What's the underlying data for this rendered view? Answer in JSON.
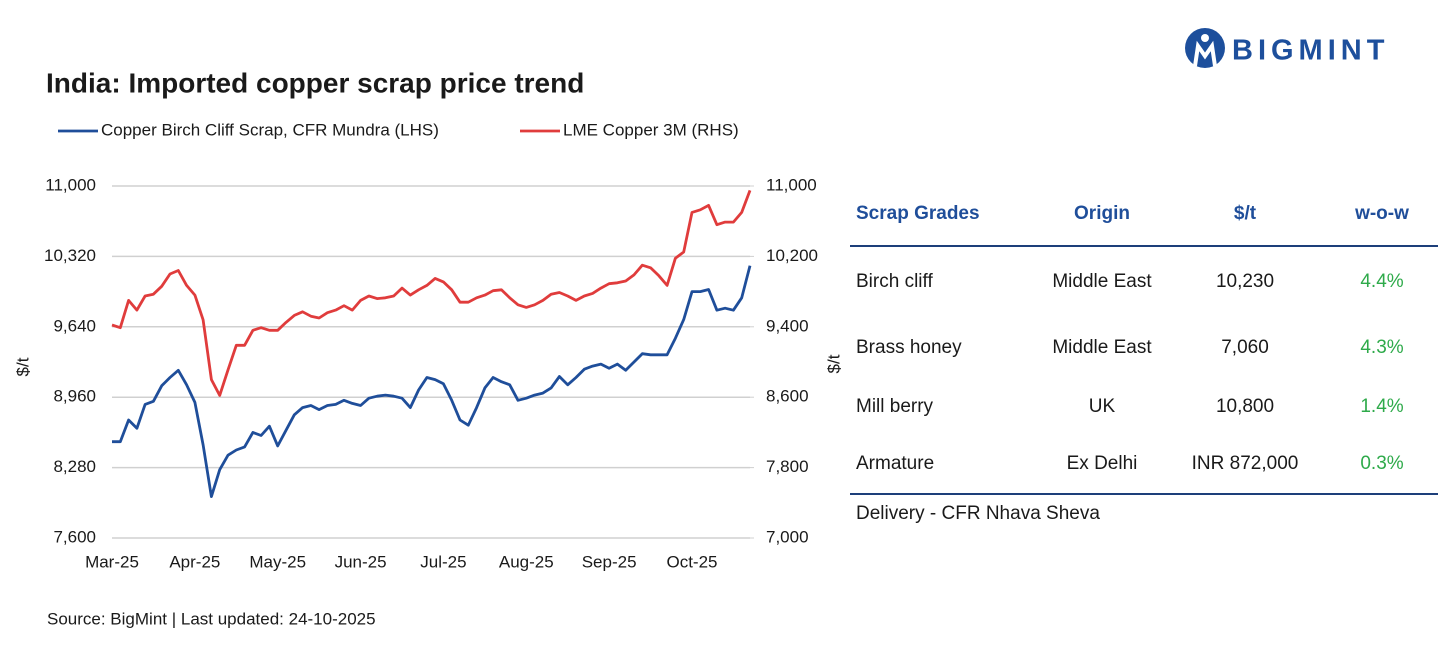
{
  "logo": "BIGMINT",
  "chart_data": {
    "type": "line",
    "title": "India: Imported copper scrap price trend",
    "categories": [
      "Mar-25",
      null,
      null,
      null,
      null,
      null,
      null,
      null,
      null,
      null,
      "Apr-25",
      null,
      null,
      null,
      null,
      null,
      null,
      null,
      null,
      null,
      "May-25",
      null,
      null,
      null,
      null,
      null,
      null,
      null,
      null,
      null,
      "Jun-25",
      null,
      null,
      null,
      null,
      null,
      null,
      null,
      null,
      null,
      "Jul-25",
      null,
      null,
      null,
      null,
      null,
      null,
      null,
      null,
      null,
      "Aug-25",
      null,
      null,
      null,
      null,
      null,
      null,
      null,
      null,
      null,
      "Sep-25",
      null,
      null,
      null,
      null,
      null,
      null,
      null,
      null,
      null,
      "Oct-25",
      null,
      null,
      null,
      null,
      null,
      null,
      null
    ],
    "series": [
      {
        "name": "Copper Birch Cliff Scrap, CFR Mundra (LHS)",
        "color": "#1f4e9a",
        "axis": "y",
        "values": [
          8530,
          8530,
          8740,
          8660,
          8890,
          8920,
          9070,
          9150,
          9220,
          9080,
          8910,
          8500,
          8000,
          8260,
          8400,
          8450,
          8480,
          8620,
          8590,
          8680,
          8490,
          8640,
          8790,
          8860,
          8880,
          8840,
          8880,
          8890,
          8930,
          8900,
          8880,
          8950,
          8970,
          8980,
          8970,
          8950,
          8860,
          9030,
          9150,
          9130,
          9090,
          8930,
          8740,
          8690,
          8860,
          9050,
          9150,
          9110,
          9080,
          8930,
          8950,
          8980,
          9000,
          9050,
          9160,
          9080,
          9150,
          9230,
          9260,
          9280,
          9240,
          9280,
          9220,
          9300,
          9380,
          9370,
          9370,
          9370,
          9530,
          9710,
          9980,
          9980,
          10000,
          9800,
          9820,
          9800,
          9920,
          10230
        ]
      },
      {
        "name": "LME Copper 3M (RHS)",
        "color": "#e03c3c",
        "axis": "y2",
        "values": [
          9420,
          9390,
          9700,
          9590,
          9750,
          9770,
          9860,
          10000,
          10040,
          9870,
          9760,
          9480,
          8800,
          8620,
          8910,
          9190,
          9190,
          9360,
          9390,
          9360,
          9360,
          9450,
          9530,
          9570,
          9520,
          9500,
          9560,
          9590,
          9640,
          9590,
          9700,
          9750,
          9720,
          9730,
          9750,
          9840,
          9760,
          9820,
          9870,
          9950,
          9910,
          9820,
          9680,
          9680,
          9730,
          9760,
          9810,
          9820,
          9730,
          9650,
          9620,
          9650,
          9700,
          9770,
          9790,
          9750,
          9700,
          9750,
          9780,
          9840,
          9890,
          9900,
          9920,
          9990,
          10100,
          10070,
          9980,
          9870,
          10180,
          10250,
          10700,
          10730,
          10780,
          10560,
          10590,
          10590,
          10700,
          10950
        ]
      }
    ],
    "ylabel": "$/t",
    "y2label": "$/t",
    "ylim": [
      7600,
      11000
    ],
    "yticks": [
      {
        "value": 7600,
        "label": "7,600"
      },
      {
        "value": 8280,
        "label": "8,280"
      },
      {
        "value": 8960,
        "label": "8,960"
      },
      {
        "value": 9640,
        "label": "9,640"
      },
      {
        "value": 10320,
        "label": "10,320"
      },
      {
        "value": 11000,
        "label": "11,000"
      }
    ],
    "y2lim": [
      7000,
      11000
    ],
    "y2ticks": [
      {
        "value": 7000,
        "label": "7,000"
      },
      {
        "value": 7800,
        "label": "7,800"
      },
      {
        "value": 8600,
        "label": "8,600"
      },
      {
        "value": 9400,
        "label": "9,400"
      },
      {
        "value": 10200,
        "label": "10,200"
      },
      {
        "value": 11000,
        "label": "11,000"
      }
    ],
    "grid": true,
    "legend": "top-left"
  },
  "table": {
    "headers": [
      "Scrap Grades",
      "Origin",
      "$/t",
      "w-o-w"
    ],
    "rows": [
      [
        "Birch cliff",
        "Middle East",
        "10,230",
        "4.4%"
      ],
      [
        "Brass honey",
        "Middle East",
        "7,060",
        "4.3%"
      ],
      [
        "Mill berry",
        "UK",
        "10,800",
        "1.4%"
      ],
      [
        "Armature",
        "Ex Delhi",
        "INR 872,000",
        "0.3%"
      ]
    ],
    "note": "Delivery - CFR Nhava Sheva"
  },
  "source": "Source: BigMint | Last updated: 24-10-2025"
}
